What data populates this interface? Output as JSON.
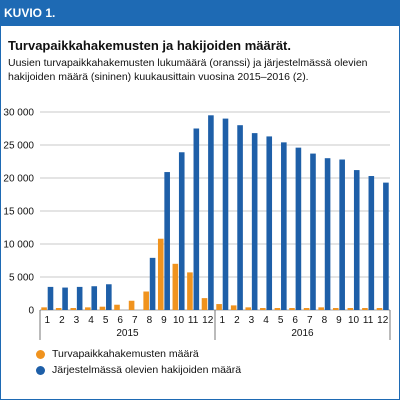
{
  "header": {
    "label": "KUVIO 1."
  },
  "title": "Turvapaikkahakemusten ja hakijoiden määrät.",
  "subtitle": "Uusien turvapaikkahakemusten lukumäärä (oranssi) ja järjestelmässä olevien hakijoiden määrä (sininen) kuukausittain vuosina 2015–2016 (2).",
  "colors": {
    "frame": "#1e6ab4",
    "orange": "#f0931e",
    "blue": "#1e5fa8",
    "grid": "#b8b8b8"
  },
  "chart_data": {
    "type": "bar",
    "categories": [
      "1",
      "2",
      "3",
      "4",
      "5",
      "6",
      "7",
      "8",
      "9",
      "10",
      "11",
      "12",
      "1",
      "2",
      "3",
      "4",
      "5",
      "6",
      "7",
      "8",
      "9",
      "10",
      "11",
      "12"
    ],
    "year_labels": [
      "2015",
      "2016"
    ],
    "yticks": [
      "0",
      "5 000",
      "10 000",
      "15 000",
      "20 000",
      "25 000",
      "30 000"
    ],
    "ylim": [
      0,
      30000
    ],
    "grid": true,
    "legend_position": "bottom-left",
    "series": [
      {
        "name": "Turvapaikkahakemusten määrä",
        "color": "#f0931e",
        "values": [
          400,
          300,
          300,
          400,
          500,
          800,
          1400,
          2800,
          10800,
          7000,
          5700,
          1800,
          900,
          700,
          400,
          300,
          300,
          300,
          300,
          400,
          300,
          300,
          300,
          300
        ]
      },
      {
        "name": "Järjestelmässä olevien hakijoiden määrä",
        "color": "#1e5fa8",
        "values": [
          3500,
          3400,
          3500,
          3600,
          3900,
          0,
          0,
          7900,
          20900,
          23900,
          27500,
          29500,
          29000,
          28000,
          26800,
          26300,
          25400,
          24600,
          23700,
          23000,
          22800,
          21200,
          20300,
          19300
        ]
      }
    ]
  }
}
